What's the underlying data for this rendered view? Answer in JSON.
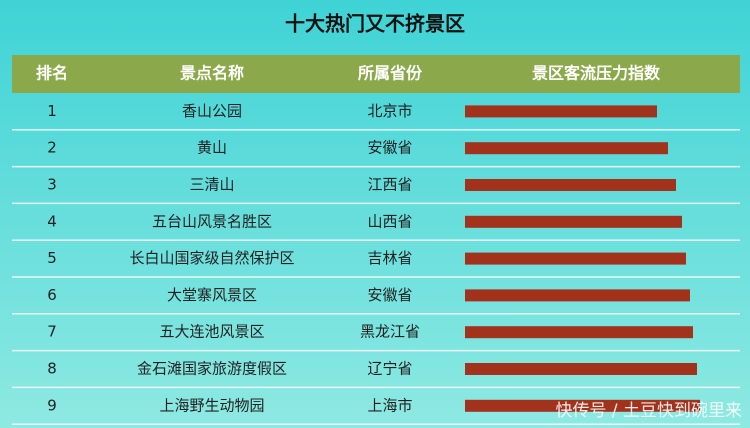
{
  "chart_data": {
    "type": "table-bar",
    "title": "十大热门又不挤景区",
    "columns": [
      "排名",
      "景点名称",
      "所属省份",
      "景区客流压力指数"
    ],
    "ranks": [
      1,
      2,
      3,
      4,
      5,
      6,
      7,
      8,
      9
    ],
    "categories": [
      "香山公园",
      "黄山",
      "三清山",
      "五台山风景名胜区",
      "长白山国家级自然保护区",
      "大堂寨风景区",
      "五大连池风景区",
      "金石滩国家旅游度假区",
      "上海野生动物园"
    ],
    "provinces": [
      "北京市",
      "安徽省",
      "江西省",
      "山西省",
      "吉林省",
      "安徽省",
      "黑龙江省",
      "辽宁省",
      "上海市"
    ],
    "values": [
      192,
      203,
      211,
      217,
      221,
      225,
      228,
      232,
      235
    ],
    "color": "#a3321d",
    "xlim": [
      0,
      270
    ],
    "watermark": "快传号 / 土豆快到碗里来"
  }
}
